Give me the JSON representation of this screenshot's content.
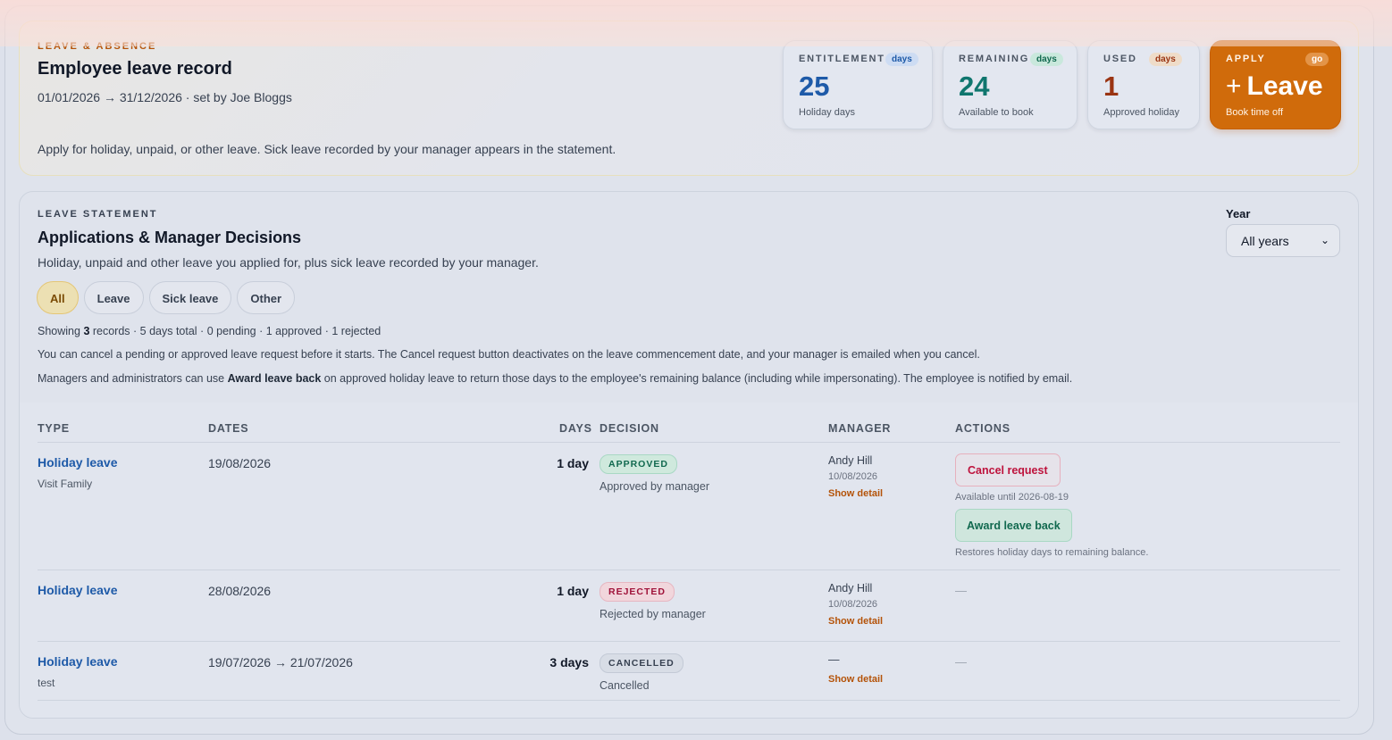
{
  "header": {
    "eyebrow": "LEAVE & ABSENCE",
    "title": "Employee leave record",
    "period": "01/01/2026 → 31/12/2026 · set by Joe Bloggs",
    "intro": "Apply for holiday, unpaid, or other leave. Sick leave recorded by your manager appears in the statement."
  },
  "stats": {
    "entitlement": {
      "label": "ENTITLEMENT",
      "pill": "days",
      "value": "25",
      "caption": "Holiday days"
    },
    "remaining": {
      "label": "REMAINING",
      "pill": "days",
      "value": "24",
      "caption": "Available to book"
    },
    "used": {
      "label": "USED",
      "pill": "days",
      "value": "1",
      "caption": "Approved holiday"
    },
    "apply": {
      "label": "APPLY",
      "pill": "go",
      "plus": "+",
      "value": "Leave",
      "caption": "Book time off"
    }
  },
  "statement": {
    "eyebrow": "LEAVE STATEMENT",
    "title": "Applications & Manager Decisions",
    "subtitle": "Holiday, unpaid and other leave you applied for, plus sick leave recorded by your manager.",
    "year_label": "Year",
    "year_value": "All years",
    "filters": [
      "All",
      "Leave",
      "Sick leave",
      "Other"
    ],
    "summary": {
      "prefix": "Showing ",
      "count": "3",
      "suffix": " records · 5 days total · 0 pending · 1 approved · 1 rejected"
    },
    "note1": "You can cancel a pending or approved leave request before it starts. The Cancel request button deactivates on the leave commencement date, and your manager is emailed when you cancel.",
    "note2": {
      "prefix": "Managers and administrators can use ",
      "bold": "Award leave back",
      "suffix": " on approved holiday leave to return those days to the employee's remaining balance (including while impersonating). The employee is notified by email."
    }
  },
  "table": {
    "headers": {
      "type": "TYPE",
      "dates": "DATES",
      "days": "DAYS",
      "decision": "DECISION",
      "manager": "MANAGER",
      "actions": "ACTIONS"
    },
    "rows": [
      {
        "type": "Holiday leave",
        "note": "Visit Family",
        "dates": "19/08/2026",
        "days": "1 day",
        "badge": "APPROVED",
        "decision": "Approved by manager",
        "manager": "Andy Hill",
        "manager_date": "10/08/2026",
        "detail": "Show detail",
        "cancel": "Cancel request",
        "available": "Available until 2026-08-19",
        "award": "Award leave back",
        "award_note": "Restores holiday days to remaining balance."
      },
      {
        "type": "Holiday leave",
        "dates": "28/08/2026",
        "days": "1 day",
        "badge": "REJECTED",
        "decision": "Rejected by manager",
        "manager": "Andy Hill",
        "manager_date": "10/08/2026",
        "detail": "Show detail",
        "action": "—"
      },
      {
        "type": "Holiday leave",
        "note": "test",
        "dates": "19/07/2026 → 21/07/2026",
        "days": "3 days",
        "badge": "CANCELLED",
        "decision": "Cancelled",
        "manager": "—",
        "detail": "Show detail",
        "action": "—"
      }
    ]
  },
  "colors": {
    "accent": "#d06b0b",
    "link": "#1e5aa8",
    "approved": "#11694f",
    "rejected": "#9f1239"
  }
}
